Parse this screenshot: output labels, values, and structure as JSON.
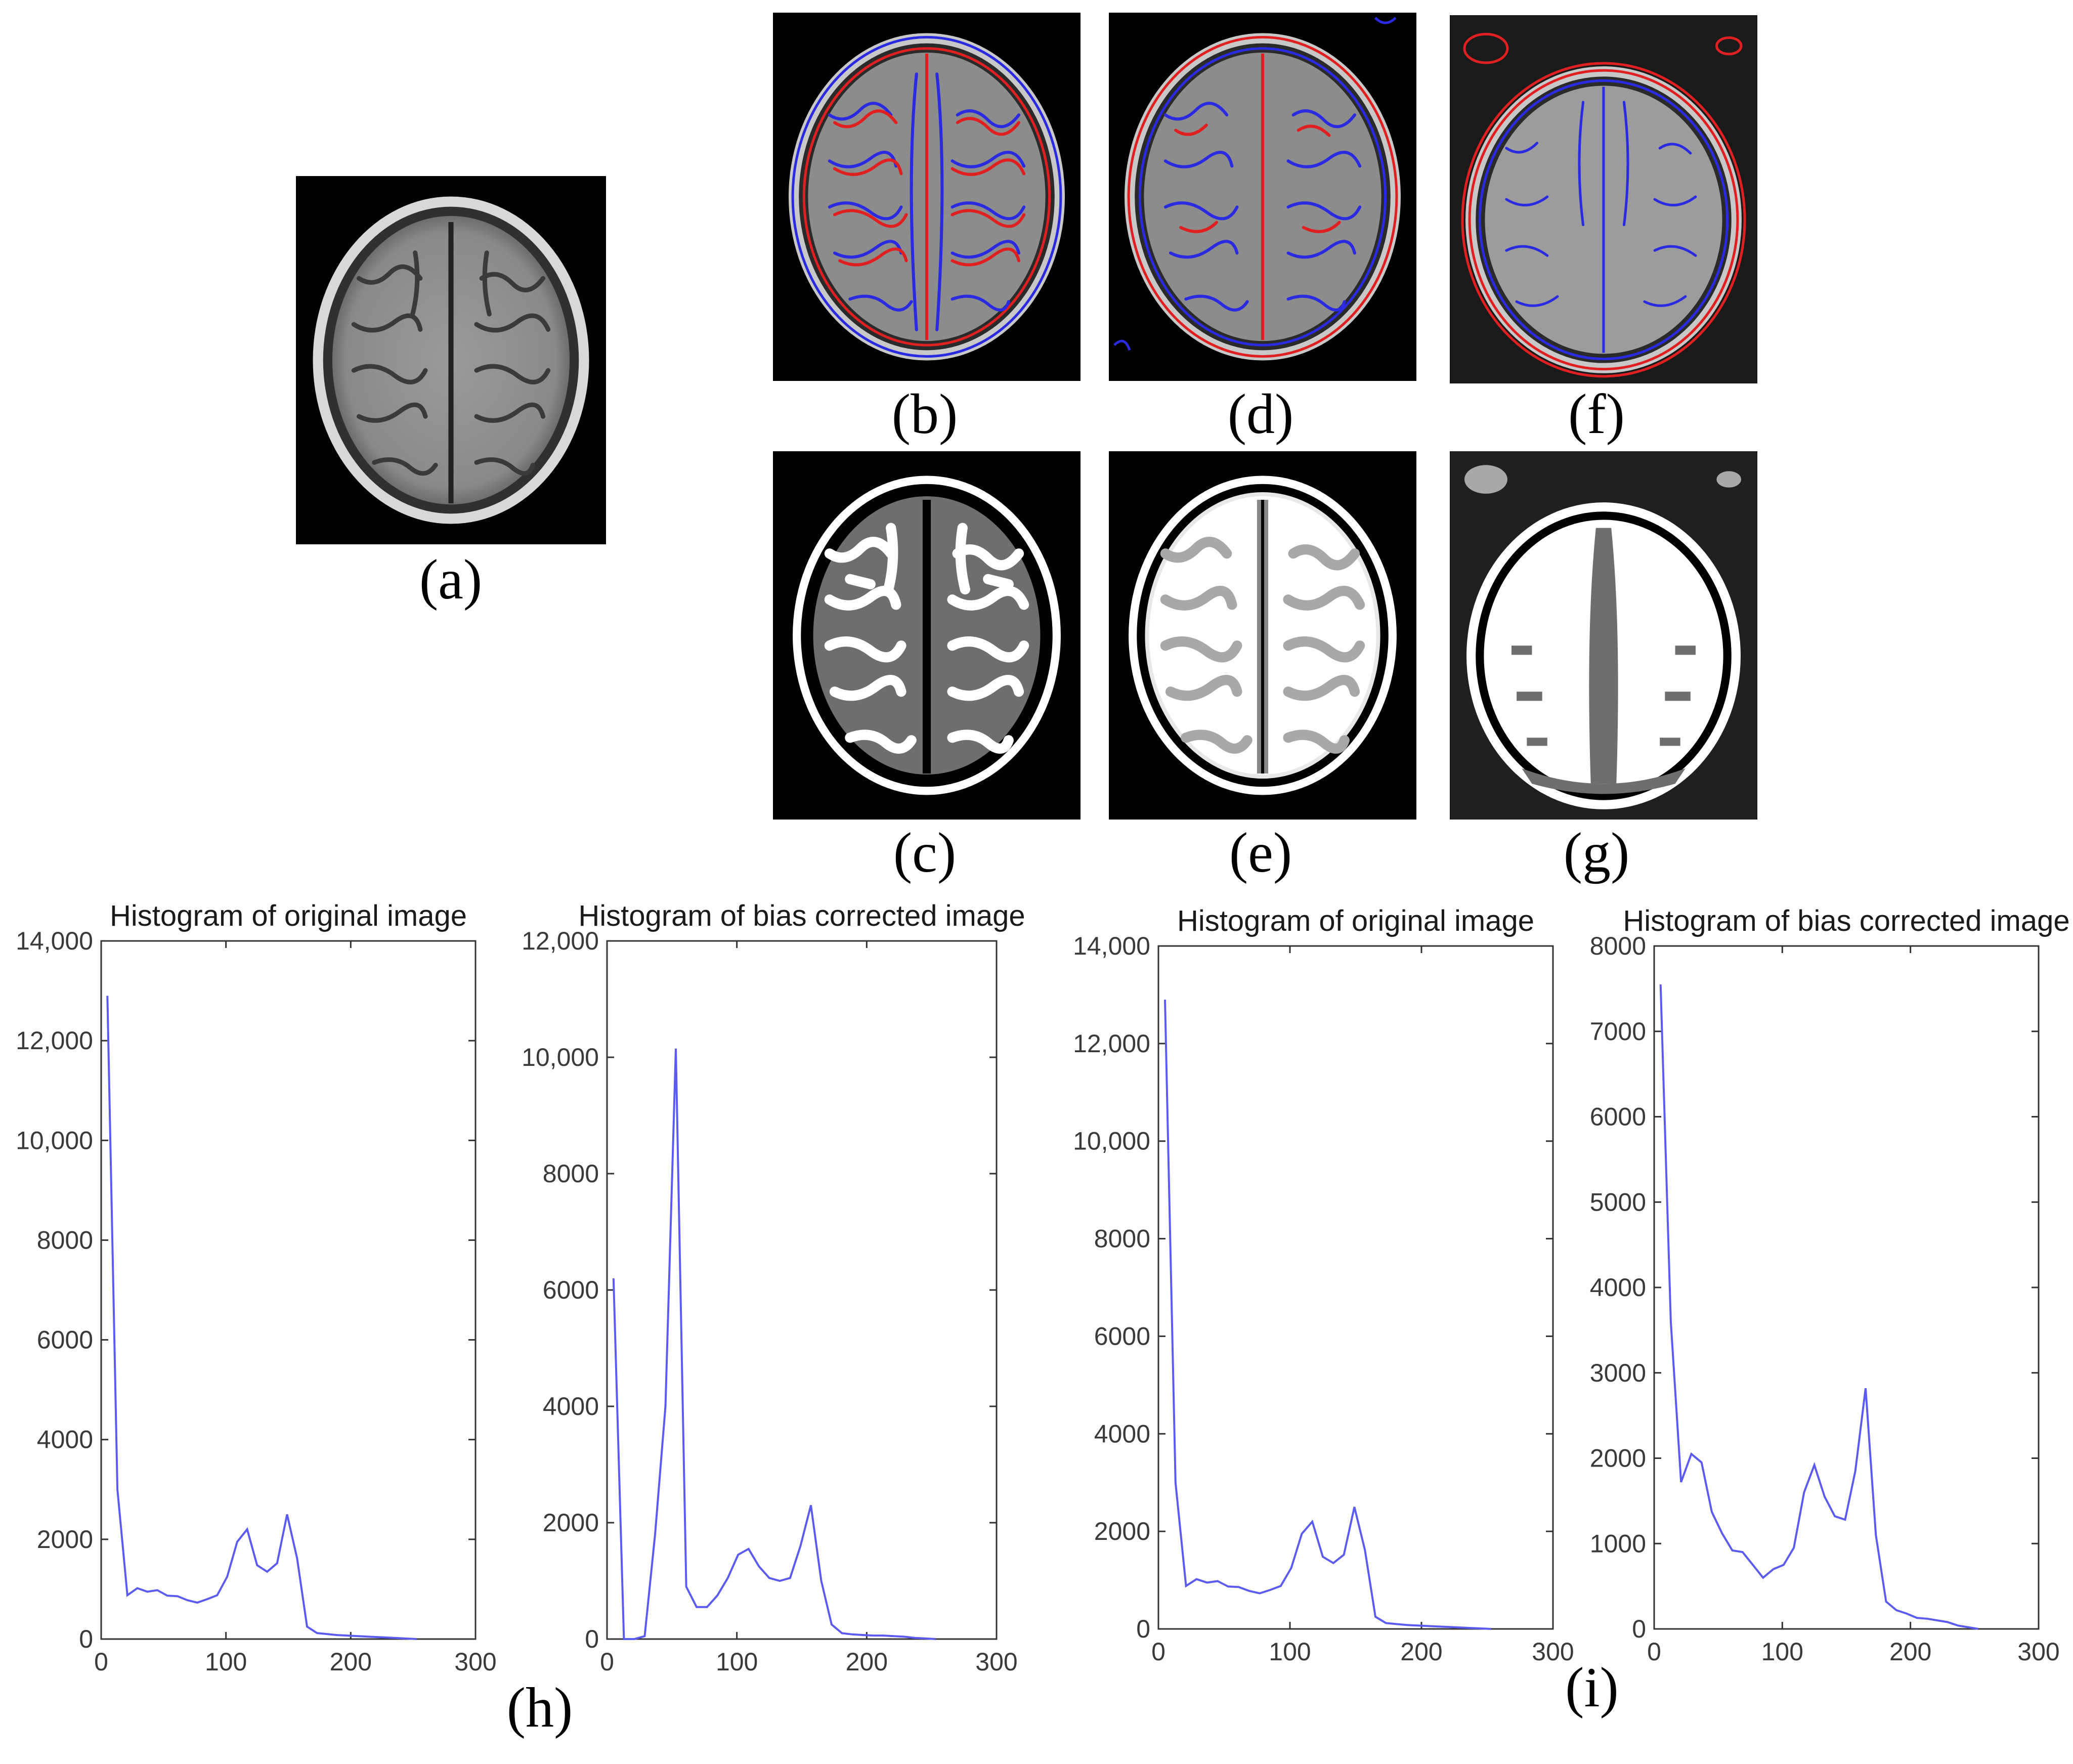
{
  "panels": {
    "a": {
      "caption": "(a)"
    },
    "b": {
      "caption": "(b)"
    },
    "c": {
      "caption": "(c)"
    },
    "d": {
      "caption": "(d)"
    },
    "e": {
      "caption": "(e)"
    },
    "f": {
      "caption": "(f)"
    },
    "g": {
      "caption": "(g)"
    }
  },
  "group_captions": {
    "h": "(h)",
    "i": "(i)"
  },
  "colors": {
    "line": "#5b5bf0",
    "contour_red": "#e02020",
    "contour_blue": "#2a2ae0"
  },
  "chart_data": [
    {
      "type": "line",
      "title": "Histogram of original image",
      "xlim": [
        0,
        300
      ],
      "ylim": [
        0,
        14000
      ],
      "xticks": [
        0,
        100,
        200,
        300
      ],
      "xtick_labels": [
        "0",
        "100",
        "200",
        "300"
      ],
      "yticks": [
        0,
        2000,
        4000,
        6000,
        8000,
        10000,
        12000,
        14000
      ],
      "ytick_labels": [
        "0",
        "2000",
        "4000",
        "6000",
        "8000",
        "10,000",
        "12,000",
        "14,000"
      ],
      "x": [
        5,
        13,
        21,
        29,
        37,
        45,
        53,
        61,
        69,
        77,
        85,
        93,
        101,
        109,
        117,
        125,
        133,
        141,
        149,
        157,
        165,
        173,
        181,
        189,
        197,
        205,
        213,
        221,
        229,
        237,
        245,
        253
      ],
      "values": [
        12900,
        3000,
        880,
        1020,
        950,
        980,
        870,
        860,
        780,
        730,
        800,
        880,
        1250,
        1950,
        2200,
        1480,
        1350,
        1520,
        2500,
        1620,
        250,
        120,
        100,
        80,
        70,
        60,
        50,
        40,
        30,
        20,
        10,
        0
      ]
    },
    {
      "type": "line",
      "title": "Histogram of bias corrected image",
      "xlim": [
        0,
        300
      ],
      "ylim": [
        0,
        12000
      ],
      "xticks": [
        0,
        100,
        200,
        300
      ],
      "xtick_labels": [
        "0",
        "100",
        "200",
        "300"
      ],
      "yticks": [
        0,
        2000,
        4000,
        6000,
        8000,
        10000,
        12000
      ],
      "ytick_labels": [
        "0",
        "2000",
        "4000",
        "6000",
        "8000",
        "10,000",
        "12,000"
      ],
      "x": [
        5,
        13,
        21,
        29,
        37,
        45,
        53,
        61,
        69,
        77,
        85,
        93,
        101,
        109,
        117,
        125,
        133,
        141,
        149,
        157,
        165,
        173,
        181,
        189,
        197,
        205,
        213,
        221,
        229,
        237,
        245,
        253
      ],
      "values": [
        6200,
        0,
        0,
        50,
        1800,
        4000,
        10150,
        900,
        550,
        550,
        750,
        1050,
        1450,
        1550,
        1250,
        1050,
        1000,
        1050,
        1600,
        2300,
        1000,
        250,
        100,
        80,
        70,
        60,
        60,
        50,
        40,
        20,
        10,
        0
      ]
    },
    {
      "type": "line",
      "title": "Histogram of original image",
      "xlim": [
        0,
        300
      ],
      "ylim": [
        0,
        14000
      ],
      "xticks": [
        0,
        100,
        200,
        300
      ],
      "xtick_labels": [
        "0",
        "100",
        "200",
        "300"
      ],
      "yticks": [
        0,
        2000,
        4000,
        6000,
        8000,
        10000,
        12000,
        14000
      ],
      "ytick_labels": [
        "0",
        "2000",
        "4000",
        "6000",
        "8000",
        "10,000",
        "12,000",
        "14,000"
      ],
      "x": [
        5,
        13,
        21,
        29,
        37,
        45,
        53,
        61,
        69,
        77,
        85,
        93,
        101,
        109,
        117,
        125,
        133,
        141,
        149,
        157,
        165,
        173,
        181,
        189,
        197,
        205,
        213,
        221,
        229,
        237,
        245,
        253
      ],
      "values": [
        12900,
        3000,
        880,
        1020,
        950,
        980,
        870,
        860,
        780,
        730,
        800,
        880,
        1250,
        1950,
        2200,
        1480,
        1350,
        1520,
        2500,
        1620,
        250,
        120,
        100,
        80,
        70,
        60,
        50,
        40,
        30,
        20,
        10,
        0
      ]
    },
    {
      "type": "line",
      "title": "Histogram of bias corrected image",
      "xlim": [
        0,
        300
      ],
      "ylim": [
        0,
        8000
      ],
      "xticks": [
        0,
        100,
        200,
        300
      ],
      "xtick_labels": [
        "0",
        "100",
        "200",
        "300"
      ],
      "yticks": [
        0,
        1000,
        2000,
        3000,
        4000,
        5000,
        6000,
        7000,
        8000
      ],
      "ytick_labels": [
        "0",
        "1000",
        "2000",
        "3000",
        "4000",
        "5000",
        "6000",
        "7000",
        "8000"
      ],
      "x": [
        5,
        13,
        21,
        29,
        37,
        45,
        53,
        61,
        69,
        77,
        85,
        93,
        101,
        109,
        117,
        125,
        133,
        141,
        149,
        157,
        165,
        173,
        181,
        189,
        197,
        205,
        213,
        221,
        229,
        237,
        245,
        253
      ],
      "values": [
        7550,
        3600,
        1720,
        2050,
        1950,
        1370,
        1120,
        920,
        900,
        750,
        600,
        700,
        750,
        950,
        1600,
        1920,
        1550,
        1320,
        1280,
        1850,
        2820,
        1100,
        320,
        220,
        180,
        130,
        120,
        100,
        80,
        40,
        20,
        0
      ]
    }
  ]
}
